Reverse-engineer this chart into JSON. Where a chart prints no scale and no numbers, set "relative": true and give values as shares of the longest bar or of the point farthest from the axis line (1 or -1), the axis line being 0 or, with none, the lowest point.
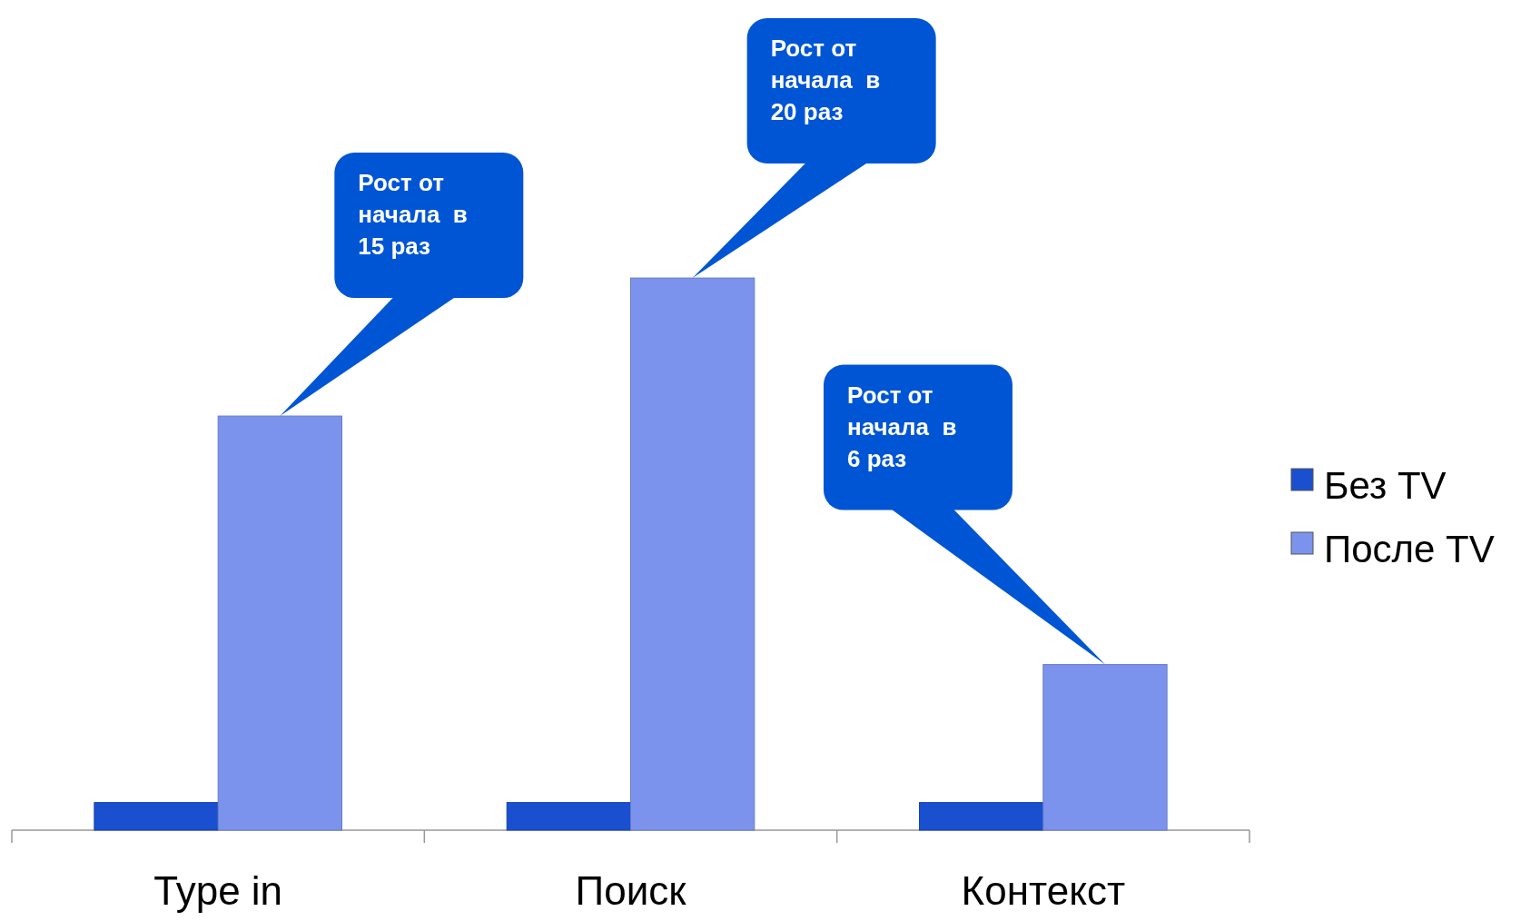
{
  "chart_data": {
    "type": "bar",
    "relative": true,
    "categories": [
      "Type in",
      "Поиск",
      "Контекст"
    ],
    "series": [
      {
        "name": "Без TV",
        "color": "#1a4fd0",
        "values": [
          0.05,
          0.05,
          0.05
        ]
      },
      {
        "name": "После TV",
        "color": "#7b93ec",
        "values": [
          0.75,
          1,
          0.3
        ]
      }
    ],
    "legend": "right",
    "annotations": [
      "Рост от\nначала  в\n15 раз",
      "Рост от\nначала  в\n20 раз",
      "Рост от\nначала  в\n6 раз"
    ]
  }
}
